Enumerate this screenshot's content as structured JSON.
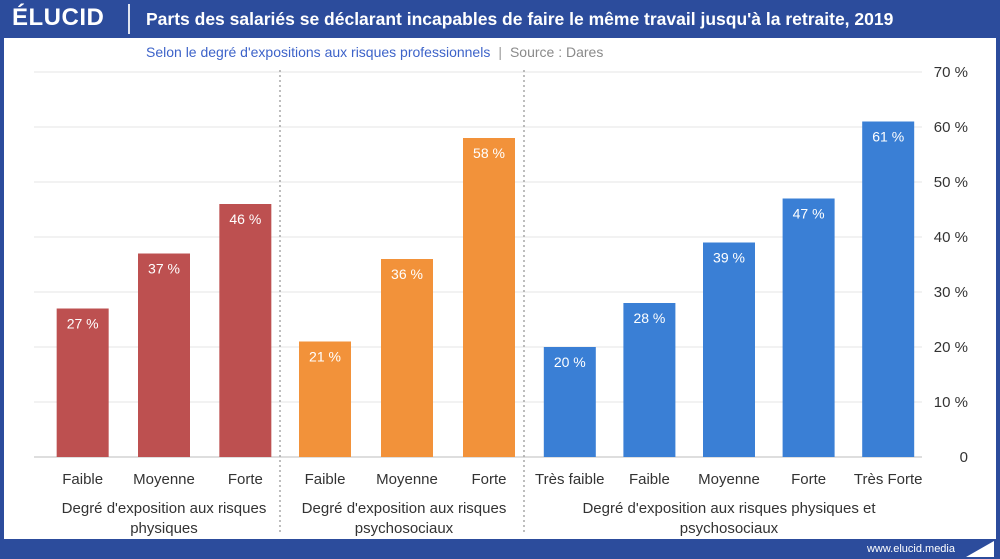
{
  "header": {
    "logo": "ÉLUCID",
    "title": "Parts des salariés se déclarant incapables de faire le même travail jusqu'à la retraite, 2019"
  },
  "subtitle": "Selon le degré d'expositions aux risques professionnels",
  "separator": "|",
  "source": "Source : Dares",
  "footer": {
    "site": "www.elucid.media"
  },
  "colors": {
    "brand": "#2c4c9c",
    "physiques": "#bd5050",
    "psychosociaux": "#f2923a",
    "both": "#3a7fd5"
  },
  "chart_data": {
    "type": "bar",
    "ylim": [
      0,
      70
    ],
    "yticks": [
      "0",
      "10 %",
      "20 %",
      "30 %",
      "40 %",
      "50 %",
      "60 %",
      "70 %"
    ],
    "grid": true,
    "groups": [
      {
        "name": "Degré d'exposition aux risques physiques",
        "lines": [
          "Degré d'exposition aux risques",
          "physiques"
        ],
        "color": "#bd5050",
        "categories": [
          "Faible",
          "Moyenne",
          "Forte"
        ],
        "values": [
          27,
          37,
          46
        ],
        "labels": [
          "27 %",
          "37 %",
          "46 %"
        ]
      },
      {
        "name": "Degré d'exposition aux risques psychosociaux",
        "lines": [
          "Degré d'exposition aux risques",
          "psychosociaux"
        ],
        "color": "#f2923a",
        "categories": [
          "Faible",
          "Moyenne",
          "Forte"
        ],
        "values": [
          21,
          36,
          58
        ],
        "labels": [
          "21 %",
          "36 %",
          "58 %"
        ]
      },
      {
        "name": "Degré d'exposition aux risques physiques et psychosociaux",
        "lines": [
          "Degré d'exposition aux risques physiques et",
          "psychosociaux"
        ],
        "color": "#3a7fd5",
        "categories": [
          "Très faible",
          "Faible",
          "Moyenne",
          "Forte",
          "Très Forte"
        ],
        "values": [
          20,
          28,
          39,
          47,
          61
        ],
        "labels": [
          "20 %",
          "28 %",
          "39 %",
          "47 %",
          "61 %"
        ]
      }
    ]
  }
}
